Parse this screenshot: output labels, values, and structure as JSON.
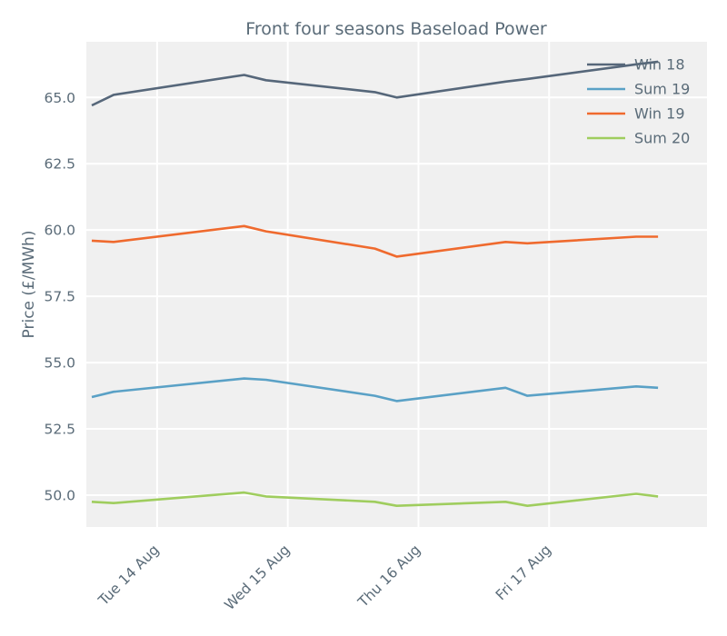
{
  "chart_data": {
    "type": "line",
    "title": "Front four seasons Baseload Power",
    "xlabel": "",
    "ylabel": "Price (£/MWh)",
    "ylim": [
      48.8,
      67.1
    ],
    "xlim": [
      "2018-08-13 11:00",
      "2018-08-18 05:00"
    ],
    "x_tick_labels": [
      "Tue 14 Aug",
      "Wed 15 Aug",
      "Thu 16 Aug",
      "Fri 17 Aug"
    ],
    "x_tick_dates": [
      "2018-08-14",
      "2018-08-15",
      "2018-08-16",
      "2018-08-17"
    ],
    "y_ticks": [
      50.0,
      52.5,
      55.0,
      57.5,
      60.0,
      62.5,
      65.0
    ],
    "grid": true,
    "legend_position": "top-right",
    "x": [
      "2018-08-13 12:00",
      "2018-08-13 16:00",
      "2018-08-14 16:00",
      "2018-08-14 20:00",
      "2018-08-15 16:00",
      "2018-08-15 20:00",
      "2018-08-16 16:00",
      "2018-08-16 20:00",
      "2018-08-17 16:00",
      "2018-08-17 20:00"
    ],
    "series": [
      {
        "name": "Win 18",
        "color": "#56677a",
        "values": [
          64.7,
          65.1,
          65.85,
          65.65,
          65.2,
          65.0,
          65.6,
          65.7,
          66.25,
          66.35
        ]
      },
      {
        "name": "Sum 19",
        "color": "#5aa1c6",
        "values": [
          53.7,
          53.9,
          54.4,
          54.35,
          53.75,
          53.55,
          54.05,
          53.75,
          54.1,
          54.05
        ]
      },
      {
        "name": "Win 19",
        "color": "#ef6a2e",
        "values": [
          59.6,
          59.55,
          60.15,
          59.95,
          59.3,
          59.0,
          59.55,
          59.5,
          59.75,
          59.75
        ]
      },
      {
        "name": "Sum 20",
        "color": "#9fcd5e",
        "values": [
          49.75,
          49.7,
          50.1,
          49.95,
          49.75,
          49.6,
          49.75,
          49.6,
          50.05,
          49.95
        ]
      }
    ]
  }
}
